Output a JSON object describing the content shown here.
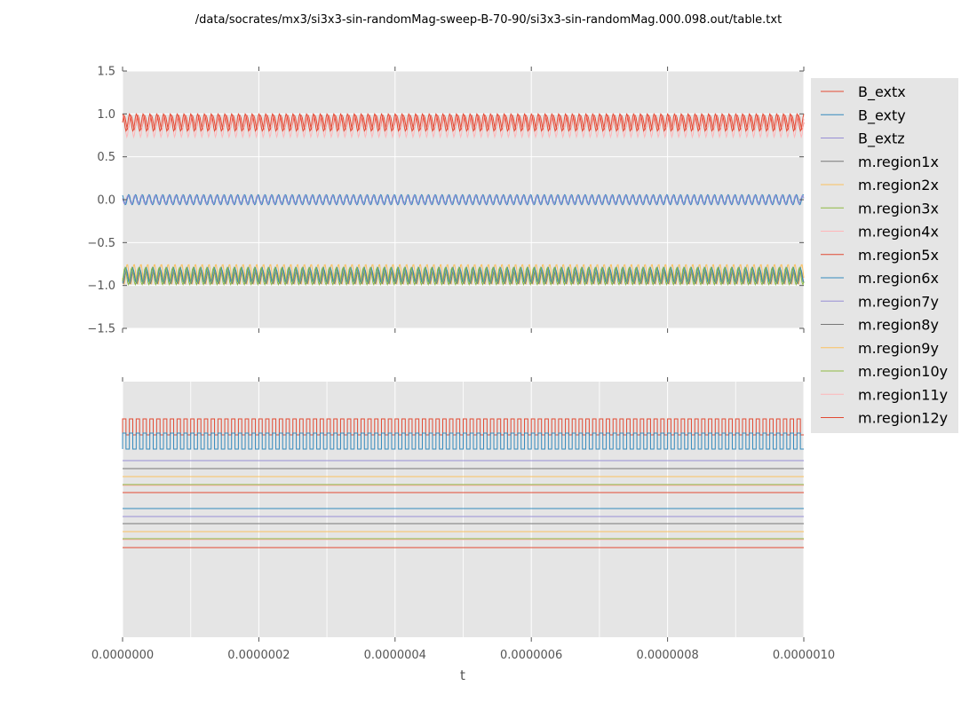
{
  "title": "/data/socrates/mx3/si3x3-sin-randomMag-sweep-B-70-90/si3x3-sin-randomMag.000.098.out/table.txt",
  "chart_data": {
    "type": "line",
    "xlabel": "t",
    "xlim": [
      0,
      1e-06
    ],
    "x_ticks": [
      "0.0000000",
      "0.0000002",
      "0.0000004",
      "0.0000006",
      "0.0000008",
      "0.0000010"
    ],
    "grid": true,
    "legend_position": "right",
    "background": "#e5e5e5",
    "series": [
      {
        "name": "B_extx",
        "color": "#e24a33"
      },
      {
        "name": "B_exty",
        "color": "#348abd"
      },
      {
        "name": "B_extz",
        "color": "#988ed5"
      },
      {
        "name": "m.region1x",
        "color": "#777777"
      },
      {
        "name": "m.region2x",
        "color": "#fbc15e"
      },
      {
        "name": "m.region3x",
        "color": "#8eba42"
      },
      {
        "name": "m.region4x",
        "color": "#ffb5b8"
      },
      {
        "name": "m.region5x",
        "color": "#e24a33"
      },
      {
        "name": "m.region6x",
        "color": "#348abd"
      },
      {
        "name": "m.region7y",
        "color": "#988ed5"
      },
      {
        "name": "m.region8y",
        "color": "#777777"
      },
      {
        "name": "m.region9y",
        "color": "#fbc15e"
      },
      {
        "name": "m.region10y",
        "color": "#8eba42"
      },
      {
        "name": "m.region11y",
        "color": "#ffb5b8"
      },
      {
        "name": "m.region12y",
        "color": "#e24a33"
      }
    ],
    "top_panel": {
      "ylim": [
        -1.5,
        1.5
      ],
      "y_ticks": [
        "1.5",
        "1.0",
        "0.5",
        "0.0",
        "−0.5",
        "−1.0",
        "−1.5"
      ],
      "bands": [
        {
          "series": "B_extx",
          "kind": "oscillation",
          "center": 0.9,
          "amplitude": 0.08,
          "cycles": 100
        },
        {
          "series": "m.region4x",
          "kind": "oscillation",
          "center": 0.86,
          "amplitude": 0.13,
          "cycles": 100
        },
        {
          "series": "m.region5x",
          "kind": "oscillation",
          "center": 0.9,
          "amplitude": 0.1,
          "cycles": 100
        },
        {
          "series": "B_exty",
          "kind": "oscillation",
          "center": 0.0,
          "amplitude": 0.06,
          "cycles": 100
        },
        {
          "series": "B_extz",
          "kind": "oscillation",
          "center": 0.0,
          "amplitude": 0.05,
          "cycles": 100
        },
        {
          "series": "m.region2x",
          "kind": "oscillation",
          "center": -0.87,
          "amplitude": 0.12,
          "cycles": 100
        },
        {
          "series": "m.region1x",
          "kind": "oscillation",
          "center": -0.9,
          "amplitude": 0.08,
          "cycles": 100
        },
        {
          "series": "m.region6x",
          "kind": "oscillation",
          "center": -0.88,
          "amplitude": 0.09,
          "cycles": 100
        },
        {
          "series": "m.region3x",
          "kind": "oscillation",
          "center": -0.89,
          "amplitude": 0.1,
          "cycles": 100
        }
      ]
    },
    "bottom_panel": {
      "y_ticks_shown": false,
      "traces": [
        {
          "series": "m.region12y",
          "kind": "square",
          "offset": 1.0,
          "amplitude": 0.045,
          "cycles": 100
        },
        {
          "series": "m.region6x",
          "kind": "square",
          "offset": 0.92,
          "amplitude": 0.045,
          "cycles": 100
        },
        {
          "series": "m.region7y",
          "kind": "flat",
          "offset": 0.81
        },
        {
          "series": "m.region8y",
          "kind": "flat",
          "offset": 0.765
        },
        {
          "series": "m.region9y",
          "kind": "flat",
          "offset": 0.72
        },
        {
          "series": "m.region10y",
          "kind": "flat",
          "offset": 0.675
        },
        {
          "series": "m.region11y",
          "kind": "flat",
          "offset": 0.67
        },
        {
          "series": "m.region5x",
          "kind": "flat",
          "offset": 0.63
        },
        {
          "series": "B_exty",
          "kind": "flat",
          "offset": 0.54
        },
        {
          "series": "B_extz",
          "kind": "flat",
          "offset": 0.495
        },
        {
          "series": "m.region1x",
          "kind": "flat",
          "offset": 0.455
        },
        {
          "series": "m.region2x",
          "kind": "flat",
          "offset": 0.41
        },
        {
          "series": "m.region3x",
          "kind": "flat",
          "offset": 0.37
        },
        {
          "series": "m.region4x",
          "kind": "flat",
          "offset": 0.365
        },
        {
          "series": "B_extx",
          "kind": "flat",
          "offset": 0.32
        }
      ]
    }
  }
}
